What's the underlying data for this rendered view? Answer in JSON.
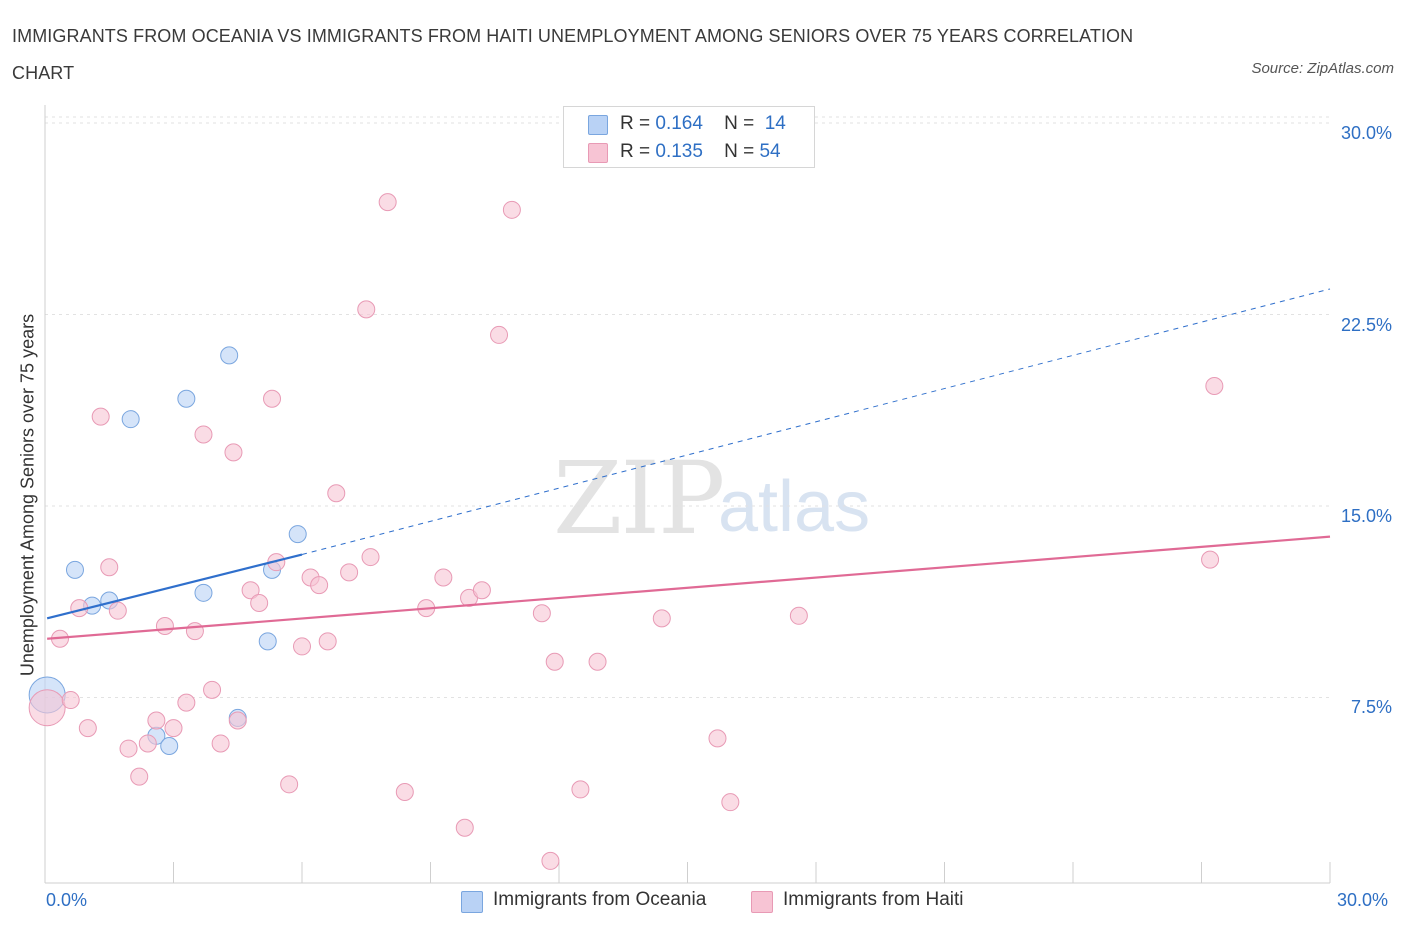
{
  "title": "IMMIGRANTS FROM OCEANIA VS IMMIGRANTS FROM HAITI UNEMPLOYMENT AMONG SENIORS OVER 75 YEARS CORRELATION CHART",
  "source": "Source: ZipAtlas.com",
  "watermark": {
    "zip": "ZIP",
    "atlas": "atlas"
  },
  "legend": {
    "r_label": "R =",
    "n_label": "N =",
    "rows": [
      {
        "r": "0.164",
        "n": "14",
        "color": "#b9d2f5"
      },
      {
        "r": "0.135",
        "n": "54",
        "color": "#f7c4d4"
      }
    ]
  },
  "bottom_legend": [
    {
      "label": "Immigrants from Oceania",
      "color": "#b9d2f5"
    },
    {
      "label": "Immigrants from Haiti",
      "color": "#f7c4d4"
    }
  ],
  "colors": {
    "oceania_line": "#2f6fcc",
    "haiti_line": "#e06a95",
    "tick_text": "#2e6fc4"
  },
  "chart_data": {
    "type": "scatter",
    "title": "IMMIGRANTS FROM OCEANIA VS IMMIGRANTS FROM HAITI UNEMPLOYMENT AMONG SENIORS OVER 75 YEARS CORRELATION CHART",
    "xlabel": "",
    "ylabel": "Unemployment Among Seniors over 75 years",
    "xlim": [
      0,
      30
    ],
    "ylim": [
      0,
      30
    ],
    "x_tick_labels": [
      "0.0%",
      "30.0%"
    ],
    "y_tick_labels": [
      "7.5%",
      "15.0%",
      "22.5%",
      "30.0%"
    ],
    "y_ticks": [
      7.5,
      15.0,
      22.5,
      30.0
    ],
    "grid": true,
    "legend_position": "top-center",
    "series": [
      {
        "name": "Immigrants from Oceania",
        "color": "#b9d2f5",
        "stroke": "#7aa6df",
        "r": 0.164,
        "n": 14,
        "points": [
          {
            "x": 0.05,
            "y": 7.6,
            "big": true
          },
          {
            "x": 0.7,
            "y": 12.5
          },
          {
            "x": 1.1,
            "y": 11.1
          },
          {
            "x": 1.5,
            "y": 11.3
          },
          {
            "x": 2.0,
            "y": 18.4
          },
          {
            "x": 2.6,
            "y": 6.0
          },
          {
            "x": 2.9,
            "y": 5.6
          },
          {
            "x": 3.3,
            "y": 19.2
          },
          {
            "x": 3.7,
            "y": 11.6
          },
          {
            "x": 4.3,
            "y": 20.9
          },
          {
            "x": 4.5,
            "y": 6.7
          },
          {
            "x": 5.2,
            "y": 9.7
          },
          {
            "x": 5.3,
            "y": 12.5
          },
          {
            "x": 5.9,
            "y": 13.9
          }
        ],
        "trend_solid": {
          "x": [
            0.05,
            6.0
          ],
          "y": [
            10.6,
            13.1
          ]
        },
        "trend_dashed": {
          "x": [
            6.0,
            30.0
          ],
          "y": [
            13.1,
            23.5
          ]
        }
      },
      {
        "name": "Immigrants from Haiti",
        "color": "#f7c4d4",
        "stroke": "#e89ab5",
        "r": 0.135,
        "n": 54,
        "points": [
          {
            "x": 0.05,
            "y": 7.1,
            "big": true
          },
          {
            "x": 0.35,
            "y": 9.8
          },
          {
            "x": 0.6,
            "y": 7.4
          },
          {
            "x": 1.0,
            "y": 6.3
          },
          {
            "x": 1.3,
            "y": 18.5
          },
          {
            "x": 0.8,
            "y": 11.0
          },
          {
            "x": 1.5,
            "y": 12.6
          },
          {
            "x": 1.7,
            "y": 10.9
          },
          {
            "x": 1.95,
            "y": 5.5
          },
          {
            "x": 2.2,
            "y": 4.4
          },
          {
            "x": 2.4,
            "y": 5.7
          },
          {
            "x": 2.6,
            "y": 6.6
          },
          {
            "x": 2.8,
            "y": 10.3
          },
          {
            "x": 3.0,
            "y": 6.3
          },
          {
            "x": 3.3,
            "y": 7.3
          },
          {
            "x": 3.5,
            "y": 10.1
          },
          {
            "x": 3.7,
            "y": 17.8
          },
          {
            "x": 3.9,
            "y": 7.8
          },
          {
            "x": 4.1,
            "y": 5.7
          },
          {
            "x": 4.4,
            "y": 17.1
          },
          {
            "x": 4.5,
            "y": 6.6
          },
          {
            "x": 4.8,
            "y": 11.7
          },
          {
            "x": 5.0,
            "y": 11.2
          },
          {
            "x": 5.3,
            "y": 19.2
          },
          {
            "x": 5.4,
            "y": 12.8
          },
          {
            "x": 5.7,
            "y": 4.1
          },
          {
            "x": 6.0,
            "y": 9.5
          },
          {
            "x": 6.2,
            "y": 12.2
          },
          {
            "x": 6.4,
            "y": 11.9
          },
          {
            "x": 6.6,
            "y": 9.7
          },
          {
            "x": 6.8,
            "y": 15.5
          },
          {
            "x": 7.1,
            "y": 12.4
          },
          {
            "x": 7.5,
            "y": 22.7
          },
          {
            "x": 7.6,
            "y": 13.0
          },
          {
            "x": 8.0,
            "y": 26.9
          },
          {
            "x": 8.4,
            "y": 3.8
          },
          {
            "x": 8.9,
            "y": 11.0
          },
          {
            "x": 9.3,
            "y": 12.2
          },
          {
            "x": 9.8,
            "y": 2.4
          },
          {
            "x": 9.9,
            "y": 11.4
          },
          {
            "x": 10.2,
            "y": 11.7
          },
          {
            "x": 10.6,
            "y": 21.7
          },
          {
            "x": 10.9,
            "y": 26.6
          },
          {
            "x": 11.6,
            "y": 10.8
          },
          {
            "x": 11.8,
            "y": 1.1
          },
          {
            "x": 11.9,
            "y": 8.9
          },
          {
            "x": 12.5,
            "y": 3.9
          },
          {
            "x": 12.9,
            "y": 8.9
          },
          {
            "x": 14.4,
            "y": 10.6
          },
          {
            "x": 15.7,
            "y": 5.9
          },
          {
            "x": 16.0,
            "y": 3.4
          },
          {
            "x": 17.6,
            "y": 10.7
          },
          {
            "x": 27.2,
            "y": 12.9
          },
          {
            "x": 27.3,
            "y": 19.7
          }
        ],
        "trend_solid": {
          "x": [
            0.05,
            30.0
          ],
          "y": [
            9.8,
            13.8
          ]
        }
      }
    ]
  }
}
